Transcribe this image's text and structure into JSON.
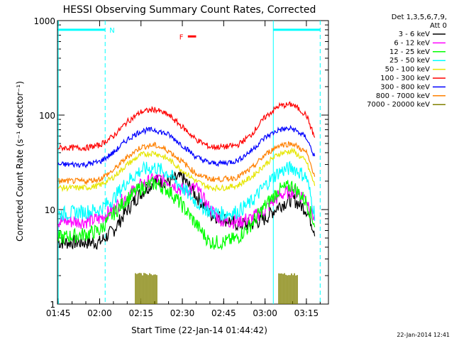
{
  "chart_data": {
    "type": "line",
    "title": "HESSI Observing Summary Count Rates, Corrected",
    "xlabel": "Start Time (22-Jan-14 01:44:42)",
    "ylabel": "Corrected Count Rate (s⁻¹ detector⁻¹)",
    "y_scale": "log",
    "ylim": [
      1,
      1000
    ],
    "xlim": [
      "01:45",
      "03:23"
    ],
    "x_ticks": [
      "01:45",
      "02:00",
      "02:15",
      "02:30",
      "02:45",
      "03:00",
      "03:15"
    ],
    "y_ticks": [
      "1",
      "10",
      "100",
      "1000"
    ],
    "grid": false,
    "legend_position": "right",
    "legend_header": [
      "Det 1,3,5,6,7,9,",
      "Att 0"
    ],
    "series": [
      {
        "name": "3 - 6 keV",
        "color": "#000000",
        "x": [
          "01:45",
          "01:55",
          "02:00",
          "02:05",
          "02:10",
          "02:15",
          "02:20",
          "02:25",
          "02:30",
          "02:35",
          "02:40",
          "02:45",
          "02:50",
          "02:55",
          "03:00",
          "03:05",
          "03:10",
          "03:15",
          "03:18"
        ],
        "y": [
          4.5,
          4.5,
          4.5,
          6,
          10,
          15,
          20,
          20,
          22,
          14,
          9,
          8,
          7,
          7,
          8,
          11,
          13,
          10,
          6
        ]
      },
      {
        "name": "6 - 12 keV",
        "color": "#ff00ff",
        "x": [
          "01:45",
          "01:55",
          "02:00",
          "02:05",
          "02:10",
          "02:15",
          "02:20",
          "02:25",
          "02:30",
          "02:35",
          "02:40",
          "02:45",
          "02:50",
          "02:55",
          "03:00",
          "03:05",
          "03:10",
          "03:15",
          "03:18"
        ],
        "y": [
          7.5,
          7.5,
          8,
          10,
          14,
          18,
          21,
          20,
          16,
          17,
          10,
          7.5,
          7.5,
          8,
          10,
          14,
          16,
          13,
          8
        ]
      },
      {
        "name": "12 - 25 keV",
        "color": "#00ff00",
        "x": [
          "01:45",
          "01:55",
          "02:00",
          "02:05",
          "02:10",
          "02:15",
          "02:20",
          "02:25",
          "02:30",
          "02:35",
          "02:40",
          "02:45",
          "02:50",
          "02:55",
          "03:00",
          "03:05",
          "03:10",
          "03:15",
          "03:18"
        ],
        "y": [
          5,
          5.5,
          6,
          9,
          13,
          17,
          19,
          16,
          11,
          7,
          4.5,
          4.5,
          5,
          7,
          11,
          16,
          18,
          12,
          7
        ]
      },
      {
        "name": "25 - 50 keV",
        "color": "#00ffff",
        "x": [
          "01:45",
          "01:55",
          "02:00",
          "02:05",
          "02:10",
          "02:15",
          "02:20",
          "02:25",
          "02:30",
          "02:35",
          "02:40",
          "02:45",
          "02:50",
          "02:55",
          "03:00",
          "03:05",
          "03:10",
          "03:15",
          "03:18"
        ],
        "y": [
          9,
          9.5,
          10,
          13,
          20,
          26,
          28,
          24,
          17,
          12,
          9.5,
          9,
          9.5,
          12,
          18,
          25,
          28,
          22,
          9
        ]
      },
      {
        "name": "50 - 100 keV",
        "color": "#e6e600",
        "x": [
          "01:45",
          "01:55",
          "02:00",
          "02:05",
          "02:10",
          "02:15",
          "02:20",
          "02:25",
          "02:30",
          "02:35",
          "02:40",
          "02:45",
          "02:50",
          "02:55",
          "03:00",
          "03:05",
          "03:10",
          "03:15",
          "03:18"
        ],
        "y": [
          17,
          17,
          18,
          22,
          30,
          38,
          40,
          34,
          26,
          20,
          17,
          17,
          18,
          22,
          30,
          39,
          42,
          32,
          18
        ]
      },
      {
        "name": "100 - 300 keV",
        "color": "#ff0000",
        "x": [
          "01:45",
          "01:55",
          "02:00",
          "02:05",
          "02:10",
          "02:15",
          "02:20",
          "02:25",
          "02:30",
          "02:35",
          "02:40",
          "02:45",
          "02:50",
          "02:55",
          "03:00",
          "03:05",
          "03:10",
          "03:15",
          "03:18"
        ],
        "y": [
          45,
          45,
          48,
          60,
          85,
          108,
          115,
          100,
          75,
          55,
          46,
          46,
          48,
          62,
          95,
          125,
          130,
          100,
          58
        ]
      },
      {
        "name": "300 - 800 keV",
        "color": "#0000ff",
        "x": [
          "01:45",
          "01:55",
          "02:00",
          "02:05",
          "02:10",
          "02:15",
          "02:20",
          "02:25",
          "02:30",
          "02:35",
          "02:40",
          "02:45",
          "02:50",
          "02:55",
          "03:00",
          "03:05",
          "03:10",
          "03:15",
          "03:18"
        ],
        "y": [
          30,
          30,
          32,
          40,
          55,
          68,
          70,
          62,
          48,
          36,
          31,
          31,
          33,
          42,
          58,
          70,
          72,
          58,
          36
        ]
      },
      {
        "name": "800 - 7000 keV",
        "color": "#ff8000",
        "x": [
          "01:45",
          "01:55",
          "02:00",
          "02:05",
          "02:10",
          "02:15",
          "02:20",
          "02:25",
          "02:30",
          "02:35",
          "02:40",
          "02:45",
          "02:50",
          "02:55",
          "03:00",
          "03:05",
          "03:10",
          "03:15",
          "03:18"
        ],
        "y": [
          20,
          20,
          21,
          26,
          36,
          46,
          48,
          42,
          32,
          24,
          21,
          21,
          22,
          27,
          38,
          48,
          50,
          40,
          23
        ]
      },
      {
        "name": "7000 - 20000 keV",
        "color": "#808000",
        "x": [
          "02:13",
          "02:17",
          "02:21",
          "03:05",
          "03:08",
          "03:12"
        ],
        "y": [
          2,
          2,
          2,
          2,
          2,
          2
        ]
      }
    ],
    "annotations": [
      {
        "label": "N",
        "color": "#00ffff",
        "start": "01:45",
        "end": "02:02",
        "level": 800
      },
      {
        "label": "",
        "color": "#00ffff",
        "start": "03:03",
        "end": "03:20",
        "level": 800
      },
      {
        "label": "F",
        "color": "#ff0000",
        "start": "02:32",
        "end": "02:35",
        "level": 680
      }
    ]
  },
  "footer": {
    "timestamp": "22-Jan-2014 12:41"
  }
}
